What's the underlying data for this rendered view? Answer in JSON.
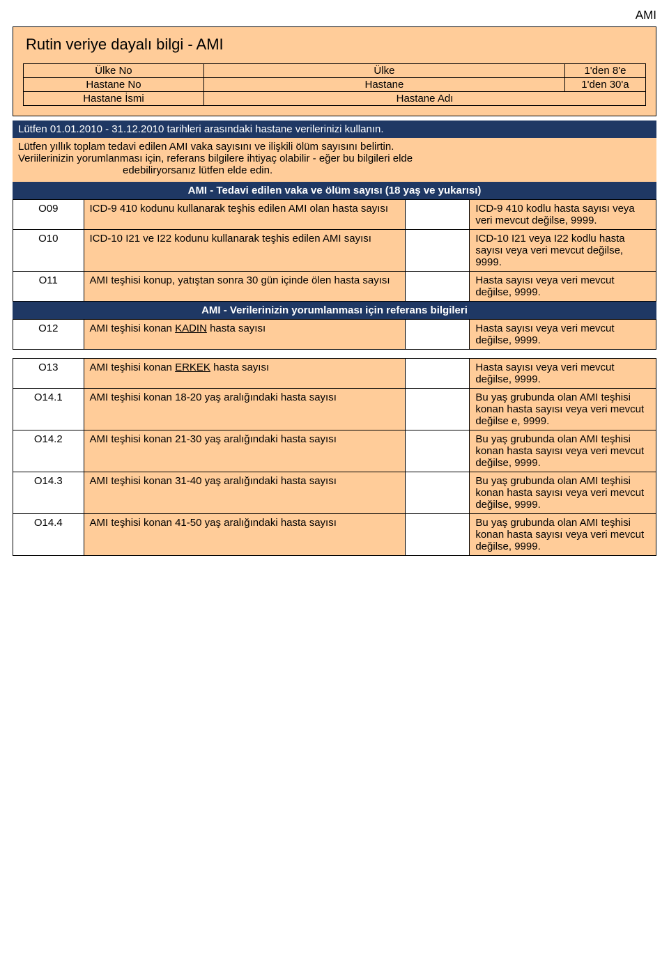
{
  "header_label": "AMI",
  "title": "Rutin veriye dayalı bilgi - AMI",
  "meta": {
    "rows": [
      {
        "label": "Ülke No",
        "name": "Ülke",
        "range": "1'den 8'e"
      },
      {
        "label": "Hastane No",
        "name": "Hastane",
        "range": "1'den 30'a"
      },
      {
        "label": "Hastane İsmi",
        "name": "Hastane Adı",
        "range": ""
      }
    ]
  },
  "bar_date": "Lütfen 01.01.2010 - 31.12.2010 tarihleri arasındaki hastane verilerinizi kullanın.",
  "instructions_line1": "Lütfen yıllık toplam tedavi edilen AMI vaka sayısını ve ilişkili ölüm sayısını belirtin.",
  "instructions_line2": "Veriilerinizin yorumlanması için, referans bilgilere ihtiyaç olabilir - eğer bu bilgileri elde",
  "instructions_line3": "edebiliryorsanız lütfen elde edin.",
  "section1_title": "AMI - Tedavi edilen vaka ve ölüm sayısı (18 yaş ve yukarısı)",
  "section2_title": "AMI - Verilerinizin yorumlanması için referans bilgileri",
  "rowsA": [
    {
      "code": "O09",
      "desc": "ICD-9 410 kodunu kullanarak teşhis edilen AMI olan hasta sayısı",
      "hint": "ICD-9 410 kodlu hasta sayısı veya veri mevcut değilse, 9999."
    },
    {
      "code": "O10",
      "desc": "ICD-10 I21 ve I22 kodunu kullanarak teşhis edilen AMI sayısı",
      "hint": "ICD-10 I21 veya I22 kodlu hasta sayısı veya veri mevcut değilse, 9999."
    },
    {
      "code": "O11",
      "desc": "AMI teşhisi konup, yatıştan sonra 30 gün içinde ölen hasta sayısı",
      "hint": "Hasta sayısı veya veri mevcut değilse, 9999."
    }
  ],
  "rowB": {
    "code": "O12",
    "desc_pre": "AMI teşhisi konan ",
    "desc_u": "KADIN",
    "desc_post": " hasta sayısı",
    "hint": "Hasta sayısı veya veri mevcut değilse, 9999."
  },
  "rowsC": [
    {
      "code": "O13",
      "desc_pre": "AMI teşhisi konan ",
      "desc_u": "ERKEK",
      "desc_post": " hasta sayısı",
      "hint": "Hasta sayısı veya veri mevcut değilse, 9999."
    },
    {
      "code": "O14.1",
      "desc": "AMI teşhisi konan 18-20 yaş aralığındaki hasta sayısı",
      "hint": "Bu yaş grubunda olan AMI teşhisi konan hasta sayısı veya veri mevcut değilse e, 9999."
    },
    {
      "code": "O14.2",
      "desc": "AMI teşhisi konan 21-30 yaş aralığındaki hasta sayısı",
      "hint": "Bu yaş grubunda olan AMI teşhisi konan hasta sayısı veya veri mevcut değilse, 9999."
    },
    {
      "code": "O14.3",
      "desc": "AMI teşhisi konan 31-40 yaş aralığındaki hasta sayısı",
      "hint": "Bu yaş grubunda olan AMI teşhisi konan hasta sayısı veya veri mevcut değilse, 9999."
    },
    {
      "code": "O14.4",
      "desc": "AMI teşhisi konan 41-50 yaş aralığındaki hasta sayısı",
      "hint": "Bu yaş grubunda olan AMI teşhisi konan hasta sayısı veya veri mevcut değilse, 9999."
    }
  ]
}
